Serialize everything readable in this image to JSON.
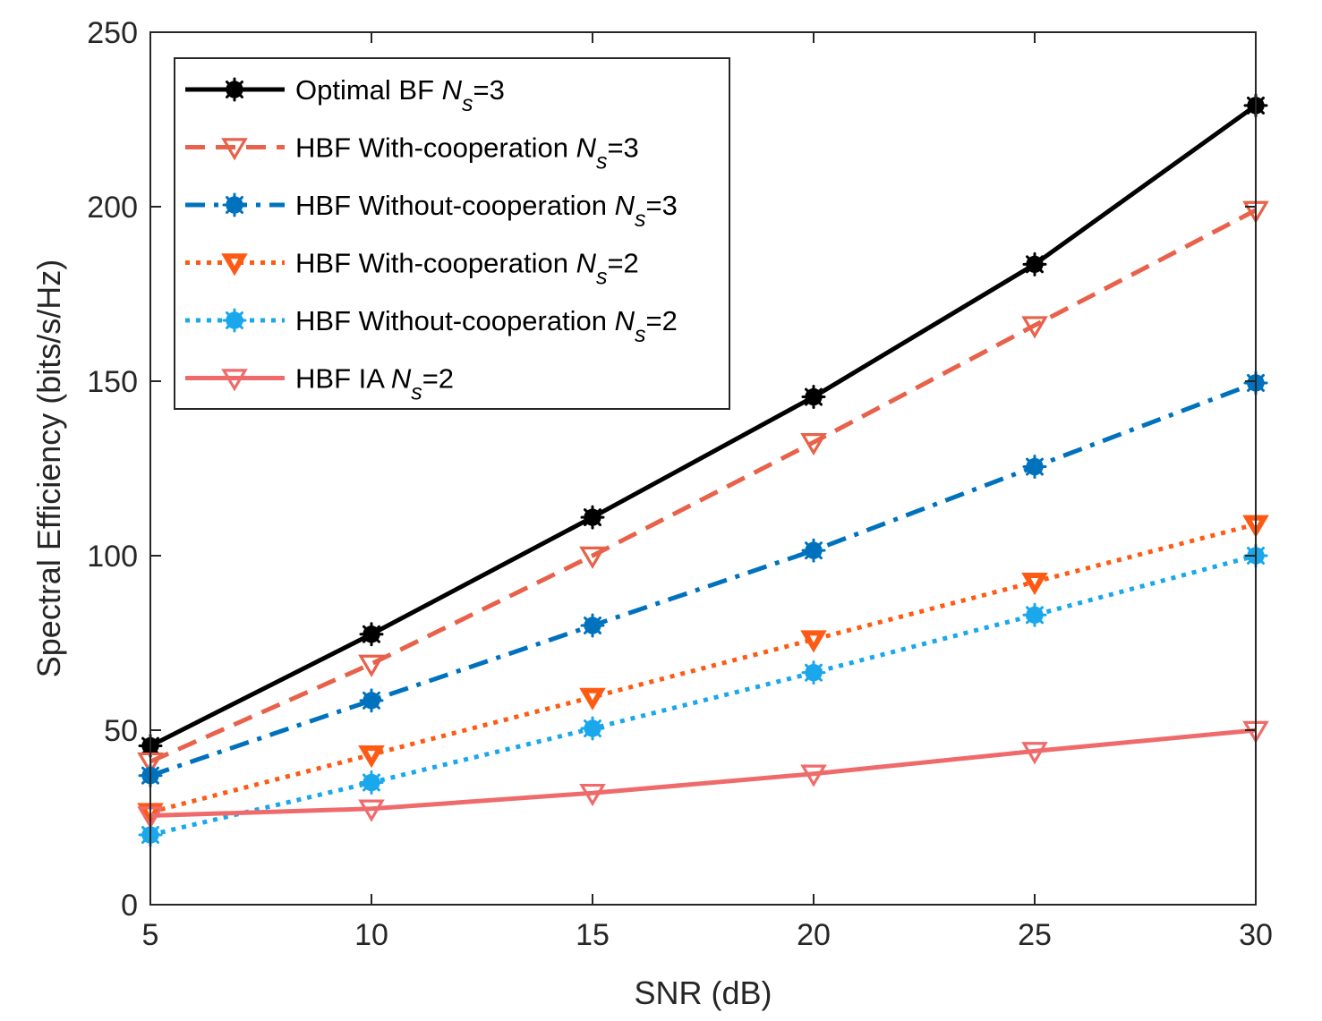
{
  "chart_data": {
    "type": "line",
    "title": "",
    "xlabel": "SNR (dB)",
    "ylabel": "Spectral Efficiency (bits/s/Hz)",
    "x": [
      5,
      10,
      15,
      20,
      25,
      30
    ],
    "xlim": [
      5,
      30
    ],
    "ylim": [
      0,
      250
    ],
    "xticks": [
      5,
      10,
      15,
      20,
      25,
      30
    ],
    "yticks": [
      0,
      50,
      100,
      150,
      200,
      250
    ],
    "grid": false,
    "legend_position": "top-left",
    "series": [
      {
        "name": "Optimal BF",
        "ns_label": "N",
        "ns_sub": "s",
        "ns_value": "=3",
        "values": [
          45.5,
          77.5,
          111,
          145.5,
          183.5,
          229
        ],
        "color": "#000000",
        "dash": "solid",
        "marker": "star"
      },
      {
        "name": "HBF With-cooperation",
        "ns_label": "N",
        "ns_sub": "s",
        "ns_value": "=3",
        "values": [
          41,
          69,
          100,
          132.5,
          166,
          199
        ],
        "color": "#e8614a",
        "dash": "dashed",
        "marker": "triangle-down-open"
      },
      {
        "name": "HBF Without-cooperation",
        "ns_label": "N",
        "ns_sub": "s",
        "ns_value": "=3",
        "values": [
          37,
          58.5,
          80,
          101.5,
          125.5,
          149.5
        ],
        "color": "#0072bd",
        "dash": "dashdot",
        "marker": "star"
      },
      {
        "name": "HBF With-cooperation",
        "ns_label": "N",
        "ns_sub": "s",
        "ns_value": "=2",
        "values": [
          26.5,
          43,
          59.5,
          76,
          92.5,
          109
        ],
        "color": "#ff5a14",
        "dash": "dotted",
        "marker": "triangle-down-filled"
      },
      {
        "name": "HBF Without-cooperation",
        "ns_label": "N",
        "ns_sub": "s",
        "ns_value": "=2",
        "values": [
          20,
          35,
          50.5,
          66.5,
          83,
          100
        ],
        "color": "#1aa7ec",
        "dash": "dotted",
        "marker": "star"
      },
      {
        "name": "HBF IA",
        "ns_label": "N",
        "ns_sub": "s",
        "ns_value": "=2",
        "values": [
          25.5,
          27.5,
          32,
          37.5,
          44,
          50
        ],
        "color": "#ef6b6b",
        "dash": "solid",
        "marker": "triangle-down-open"
      }
    ]
  }
}
